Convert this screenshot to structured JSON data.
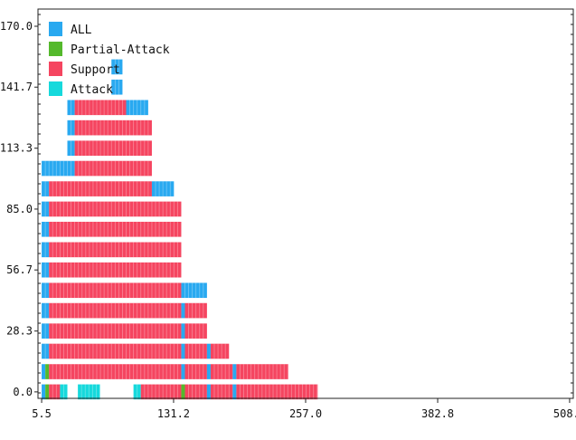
{
  "chart_data": {
    "type": "bar",
    "orientation": "horizontal-stacked-rows",
    "title": "",
    "xlabel": "",
    "ylabel": "",
    "xlim": [
      2.0,
      512.0
    ],
    "ylim": [
      -3.0,
      178.0
    ],
    "x_ticks": [
      "5.5",
      "131.2",
      "257.0",
      "382.8",
      "508.5"
    ],
    "x_tick_values": [
      5.5,
      131.2,
      257.0,
      382.8,
      508.5
    ],
    "y_ticks": [
      "0.0",
      "28.3",
      "56.7",
      "85.0",
      "113.3",
      "141.7",
      "170.0"
    ],
    "y_tick_values": [
      0.0,
      28.3,
      56.7,
      85.0,
      113.3,
      141.7,
      170.0
    ],
    "legend": {
      "placement": "top-left",
      "items": [
        {
          "key": "ALL",
          "label": "ALL",
          "color": "#29a9f0"
        },
        {
          "key": "Partial-Attack",
          "label": "Partial-Attack",
          "color": "#54b92c"
        },
        {
          "key": "Support",
          "label": "Support",
          "color": "#f54560"
        },
        {
          "key": "Attack",
          "label": "Attack",
          "color": "#16d9dc"
        }
      ]
    },
    "bar_height": 7.0,
    "segments": [
      {
        "y": 0.0,
        "x0": 5.5,
        "x1": 9.0,
        "category": "ALL"
      },
      {
        "y": 0.0,
        "x0": 9.0,
        "x1": 12.5,
        "category": "Partial-Attack"
      },
      {
        "y": 0.0,
        "x0": 12.5,
        "x1": 23.0,
        "category": "Support"
      },
      {
        "y": 0.0,
        "x0": 23.0,
        "x1": 30.0,
        "category": "Attack"
      },
      {
        "y": 0.0,
        "x0": 40.0,
        "x1": 61.0,
        "category": "Attack"
      },
      {
        "y": 0.0,
        "x0": 93.0,
        "x1": 100.0,
        "category": "Attack"
      },
      {
        "y": 0.0,
        "x0": 100.0,
        "x1": 138.5,
        "category": "Support"
      },
      {
        "y": 0.0,
        "x0": 138.5,
        "x1": 142.0,
        "category": "Partial-Attack"
      },
      {
        "y": 0.0,
        "x0": 142.0,
        "x1": 163.0,
        "category": "Support"
      },
      {
        "y": 0.0,
        "x0": 163.0,
        "x1": 166.5,
        "category": "ALL"
      },
      {
        "y": 0.0,
        "x0": 166.5,
        "x1": 187.5,
        "category": "Support"
      },
      {
        "y": 0.0,
        "x0": 187.5,
        "x1": 191.0,
        "category": "ALL"
      },
      {
        "y": 0.0,
        "x0": 191.0,
        "x1": 268.5,
        "category": "Support"
      },
      {
        "y": 9.4,
        "x0": 5.5,
        "x1": 9.0,
        "category": "ALL"
      },
      {
        "y": 9.4,
        "x0": 9.0,
        "x1": 12.5,
        "category": "Partial-Attack"
      },
      {
        "y": 9.4,
        "x0": 12.5,
        "x1": 138.5,
        "category": "Support"
      },
      {
        "y": 9.4,
        "x0": 138.5,
        "x1": 142.0,
        "category": "ALL"
      },
      {
        "y": 9.4,
        "x0": 142.0,
        "x1": 163.0,
        "category": "Support"
      },
      {
        "y": 9.4,
        "x0": 163.0,
        "x1": 166.5,
        "category": "ALL"
      },
      {
        "y": 9.4,
        "x0": 166.5,
        "x1": 187.5,
        "category": "Support"
      },
      {
        "y": 9.4,
        "x0": 187.5,
        "x1": 191.0,
        "category": "ALL"
      },
      {
        "y": 9.4,
        "x0": 191.0,
        "x1": 240.5,
        "category": "Support"
      },
      {
        "y": 18.9,
        "x0": 5.5,
        "x1": 12.5,
        "category": "ALL"
      },
      {
        "y": 18.9,
        "x0": 12.5,
        "x1": 138.5,
        "category": "Support"
      },
      {
        "y": 18.9,
        "x0": 138.5,
        "x1": 142.0,
        "category": "ALL"
      },
      {
        "y": 18.9,
        "x0": 142.0,
        "x1": 163.0,
        "category": "Support"
      },
      {
        "y": 18.9,
        "x0": 163.0,
        "x1": 166.5,
        "category": "ALL"
      },
      {
        "y": 18.9,
        "x0": 166.5,
        "x1": 184.0,
        "category": "Support"
      },
      {
        "y": 28.3,
        "x0": 5.5,
        "x1": 12.5,
        "category": "ALL"
      },
      {
        "y": 28.3,
        "x0": 12.5,
        "x1": 138.5,
        "category": "Support"
      },
      {
        "y": 28.3,
        "x0": 138.5,
        "x1": 142.0,
        "category": "ALL"
      },
      {
        "y": 28.3,
        "x0": 142.0,
        "x1": 163.0,
        "category": "Support"
      },
      {
        "y": 37.8,
        "x0": 5.5,
        "x1": 12.5,
        "category": "ALL"
      },
      {
        "y": 37.8,
        "x0": 12.5,
        "x1": 138.5,
        "category": "Support"
      },
      {
        "y": 37.8,
        "x0": 138.5,
        "x1": 142.0,
        "category": "ALL"
      },
      {
        "y": 37.8,
        "x0": 142.0,
        "x1": 163.0,
        "category": "Support"
      },
      {
        "y": 47.2,
        "x0": 5.5,
        "x1": 12.5,
        "category": "ALL"
      },
      {
        "y": 47.2,
        "x0": 12.5,
        "x1": 138.5,
        "category": "Support"
      },
      {
        "y": 47.2,
        "x0": 138.5,
        "x1": 163.0,
        "category": "ALL"
      },
      {
        "y": 56.7,
        "x0": 5.5,
        "x1": 12.5,
        "category": "ALL"
      },
      {
        "y": 56.7,
        "x0": 12.5,
        "x1": 138.5,
        "category": "Support"
      },
      {
        "y": 66.1,
        "x0": 5.5,
        "x1": 12.5,
        "category": "ALL"
      },
      {
        "y": 66.1,
        "x0": 12.5,
        "x1": 138.5,
        "category": "Support"
      },
      {
        "y": 75.6,
        "x0": 5.5,
        "x1": 12.5,
        "category": "ALL"
      },
      {
        "y": 75.6,
        "x0": 12.5,
        "x1": 138.5,
        "category": "Support"
      },
      {
        "y": 85.0,
        "x0": 5.5,
        "x1": 12.5,
        "category": "ALL"
      },
      {
        "y": 85.0,
        "x0": 12.5,
        "x1": 138.5,
        "category": "Support"
      },
      {
        "y": 94.4,
        "x0": 5.5,
        "x1": 12.5,
        "category": "ALL"
      },
      {
        "y": 94.4,
        "x0": 12.5,
        "x1": 110.5,
        "category": "Support"
      },
      {
        "y": 94.4,
        "x0": 110.5,
        "x1": 131.5,
        "category": "ALL"
      },
      {
        "y": 103.9,
        "x0": 5.5,
        "x1": 37.0,
        "category": "ALL"
      },
      {
        "y": 103.9,
        "x0": 37.0,
        "x1": 110.5,
        "category": "Support"
      },
      {
        "y": 113.3,
        "x0": 30.0,
        "x1": 37.0,
        "category": "ALL"
      },
      {
        "y": 113.3,
        "x0": 37.0,
        "x1": 110.5,
        "category": "Support"
      },
      {
        "y": 122.8,
        "x0": 30.0,
        "x1": 37.0,
        "category": "ALL"
      },
      {
        "y": 122.8,
        "x0": 37.0,
        "x1": 110.5,
        "category": "Support"
      },
      {
        "y": 132.2,
        "x0": 30.0,
        "x1": 37.0,
        "category": "ALL"
      },
      {
        "y": 132.2,
        "x0": 37.0,
        "x1": 86.0,
        "category": "Support"
      },
      {
        "y": 132.2,
        "x0": 86.0,
        "x1": 107.0,
        "category": "ALL"
      },
      {
        "y": 141.7,
        "x0": 72.0,
        "x1": 82.5,
        "category": "ALL"
      },
      {
        "y": 151.1,
        "x0": 72.0,
        "x1": 82.5,
        "category": "ALL"
      }
    ]
  }
}
